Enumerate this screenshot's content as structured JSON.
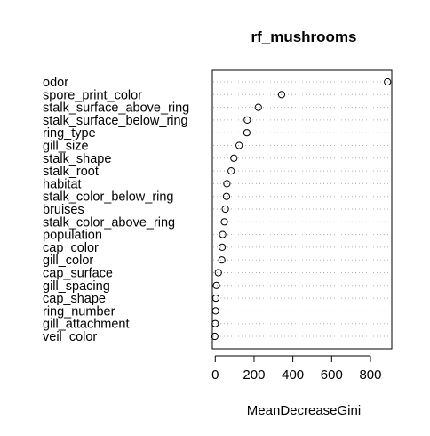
{
  "chart_data": {
    "type": "dotchart",
    "title": "rf_mushrooms",
    "xlabel": "MeanDecreaseGini",
    "xlim": [
      -15,
      910
    ],
    "xticks": [
      0,
      200,
      400,
      600,
      800
    ],
    "grid": "dotted horizontal guide lines",
    "variables": [
      {
        "name": "odor",
        "value": 888
      },
      {
        "name": "spore_print_color",
        "value": 342
      },
      {
        "name": "stalk_surface_above_ring",
        "value": 222
      },
      {
        "name": "stalk_surface_below_ring",
        "value": 165
      },
      {
        "name": "ring_type",
        "value": 163
      },
      {
        "name": "gill_size",
        "value": 123
      },
      {
        "name": "stalk_shape",
        "value": 96
      },
      {
        "name": "stalk_root",
        "value": 82
      },
      {
        "name": "habitat",
        "value": 60
      },
      {
        "name": "stalk_color_below_ring",
        "value": 58
      },
      {
        "name": "bruises",
        "value": 52
      },
      {
        "name": "stalk_color_above_ring",
        "value": 47
      },
      {
        "name": "population",
        "value": 38
      },
      {
        "name": "cap_color",
        "value": 36
      },
      {
        "name": "gill_color",
        "value": 34
      },
      {
        "name": "cap_surface",
        "value": 16
      },
      {
        "name": "gill_spacing",
        "value": 6
      },
      {
        "name": "cap_shape",
        "value": 3
      },
      {
        "name": "ring_number",
        "value": 2
      },
      {
        "name": "gill_attachment",
        "value": 0
      },
      {
        "name": "veil_color",
        "value": -2
      }
    ]
  }
}
